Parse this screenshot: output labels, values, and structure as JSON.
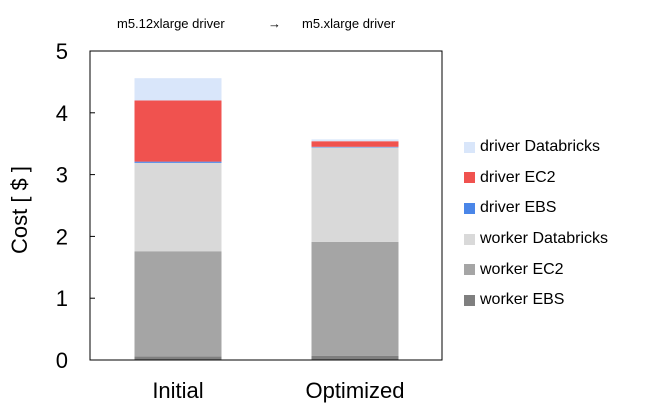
{
  "chart_data": {
    "type": "bar",
    "stacked": true,
    "categories": [
      "Initial",
      "Optimized"
    ],
    "series": [
      {
        "name": "worker EBS",
        "color": "#7f7f7f",
        "values": [
          0.06,
          0.07
        ]
      },
      {
        "name": "worker EC2",
        "color": "#a5a5a5",
        "values": [
          1.7,
          1.84
        ]
      },
      {
        "name": "worker Databricks",
        "color": "#d9d9d9",
        "values": [
          1.43,
          1.53
        ]
      },
      {
        "name": "driver EBS",
        "color": "#4a86e8",
        "values": [
          0.02,
          0.01
        ]
      },
      {
        "name": "driver EC2",
        "color": "#f0524f",
        "values": [
          0.99,
          0.09
        ]
      },
      {
        "name": "driver Databricks",
        "color": "#d9e6fa",
        "values": [
          0.36,
          0.03
        ]
      }
    ],
    "ylabel": "Cost [ $ ]",
    "xlabel": "",
    "ylim": [
      0,
      5
    ],
    "yticks": [
      "0",
      "1",
      "2",
      "3",
      "4",
      "5"
    ],
    "legend_position": "right",
    "grid": false,
    "annotation": {
      "left": "m5.12xlarge driver",
      "arrow": "→",
      "right": "m5.xlarge driver"
    }
  }
}
